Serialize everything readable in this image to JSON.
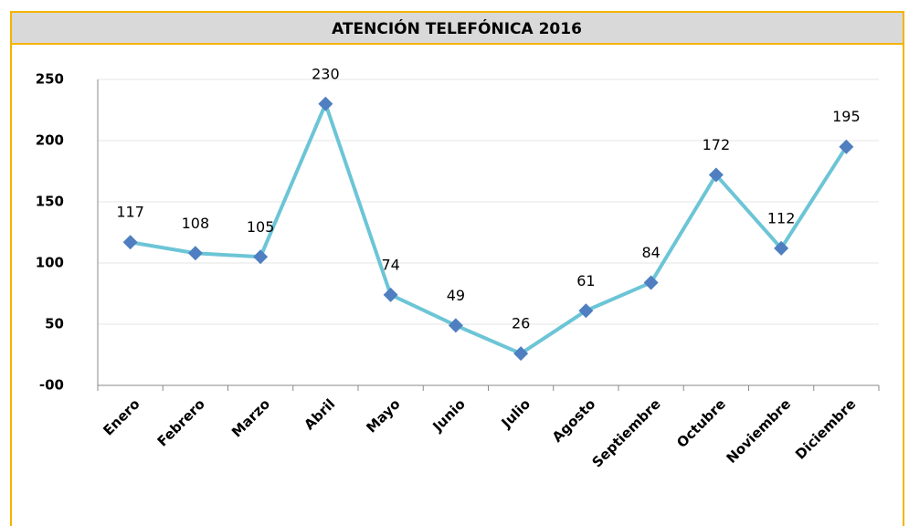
{
  "chart_data": {
    "type": "line",
    "title": "ATENCIÓN TELEFÓNICA 2016",
    "categories": [
      "Enero",
      "Febrero",
      "Marzo",
      "Abril",
      "Mayo",
      "Junio",
      "Julio",
      "Agosto",
      "Septiembre",
      "Octubre",
      "Noviembre",
      "Diciembre"
    ],
    "series": [
      {
        "name": "Atención",
        "color": "#6cc5d6",
        "marker_color": "#4f7fc0",
        "values": [
          117,
          108,
          105,
          230,
          74,
          49,
          26,
          61,
          84,
          172,
          112,
          195
        ]
      }
    ],
    "ylim": [
      0,
      250
    ],
    "yticks": [
      {
        "value": 0,
        "label": "-00"
      },
      50,
      100,
      150,
      200,
      250
    ],
    "grid": true
  }
}
